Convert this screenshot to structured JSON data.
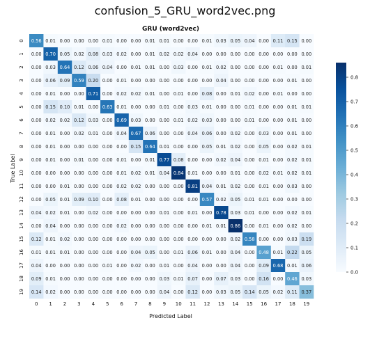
{
  "window_title": "confusion_5_GRU_word2vec.png",
  "chart_data": {
    "type": "heatmap",
    "title": "GRU (word2vec)",
    "xlabel": "Predicted Label",
    "ylabel": "True Label",
    "x_ticks": [
      "0",
      "1",
      "2",
      "3",
      "4",
      "5",
      "6",
      "7",
      "8",
      "9",
      "10",
      "11",
      "12",
      "13",
      "14",
      "15",
      "16",
      "17",
      "18",
      "19"
    ],
    "y_ticks": [
      "0",
      "1",
      "2",
      "3",
      "4",
      "5",
      "6",
      "7",
      "8",
      "9",
      "10",
      "11",
      "12",
      "13",
      "14",
      "15",
      "16",
      "17",
      "18",
      "19"
    ],
    "colorbar_ticks": [
      0.0,
      0.1,
      0.2,
      0.3,
      0.4,
      0.5,
      0.6,
      0.7,
      0.8
    ],
    "colorbar_range": [
      0,
      0.86
    ],
    "color_low": "#f7fbff",
    "color_high": "#08306b",
    "matrix": [
      [
        0.56,
        0.01,
        0.0,
        0.0,
        0.0,
        0.01,
        0.0,
        0.0,
        0.01,
        0.01,
        0.0,
        0.0,
        0.01,
        0.03,
        0.05,
        0.04,
        0.0,
        0.11,
        0.15,
        0.0
      ],
      [
        0.0,
        0.7,
        0.05,
        0.02,
        0.08,
        0.03,
        0.02,
        0.0,
        0.01,
        0.02,
        0.02,
        0.04,
        0.0,
        0.0,
        0.0,
        0.0,
        0.0,
        0.0,
        0.0,
        0.0
      ],
      [
        0.0,
        0.03,
        0.64,
        0.12,
        0.06,
        0.04,
        0.0,
        0.01,
        0.01,
        0.0,
        0.03,
        0.0,
        0.01,
        0.02,
        0.0,
        0.0,
        0.0,
        0.01,
        0.0,
        0.01
      ],
      [
        0.0,
        0.06,
        0.09,
        0.59,
        0.2,
        0.0,
        0.01,
        0.0,
        0.0,
        0.0,
        0.0,
        0.0,
        0.0,
        0.04,
        0.0,
        0.0,
        0.0,
        0.0,
        0.01,
        0.0
      ],
      [
        0.0,
        0.01,
        0.0,
        0.0,
        0.71,
        0.0,
        0.02,
        0.02,
        0.01,
        0.0,
        0.01,
        0.0,
        0.08,
        0.0,
        0.01,
        0.02,
        0.0,
        0.01,
        0.0,
        0.0
      ],
      [
        0.0,
        0.15,
        0.1,
        0.01,
        0.0,
        0.63,
        0.01,
        0.0,
        0.0,
        0.01,
        0.0,
        0.03,
        0.01,
        0.0,
        0.0,
        0.01,
        0.0,
        0.0,
        0.01,
        0.01
      ],
      [
        0.0,
        0.02,
        0.02,
        0.12,
        0.03,
        0.0,
        0.69,
        0.03,
        0.0,
        0.0,
        0.01,
        0.02,
        0.03,
        0.0,
        0.0,
        0.01,
        0.0,
        0.0,
        0.01,
        0.0
      ],
      [
        0.0,
        0.01,
        0.0,
        0.02,
        0.01,
        0.0,
        0.04,
        0.67,
        0.06,
        0.0,
        0.0,
        0.04,
        0.06,
        0.0,
        0.02,
        0.0,
        0.03,
        0.0,
        0.01,
        0.0
      ],
      [
        0.0,
        0.01,
        0.0,
        0.0,
        0.0,
        0.0,
        0.0,
        0.15,
        0.64,
        0.01,
        0.0,
        0.0,
        0.05,
        0.01,
        0.02,
        0.0,
        0.05,
        0.0,
        0.02,
        0.01
      ],
      [
        0.0,
        0.01,
        0.0,
        0.01,
        0.0,
        0.0,
        0.01,
        0.0,
        0.01,
        0.77,
        0.08,
        0.0,
        0.0,
        0.02,
        0.04,
        0.0,
        0.01,
        0.0,
        0.02,
        0.01
      ],
      [
        0.0,
        0.0,
        0.0,
        0.0,
        0.0,
        0.0,
        0.01,
        0.02,
        0.01,
        0.04,
        0.84,
        0.01,
        0.0,
        0.0,
        0.01,
        0.0,
        0.02,
        0.01,
        0.02,
        0.01
      ],
      [
        0.0,
        0.0,
        0.01,
        0.0,
        0.0,
        0.0,
        0.02,
        0.02,
        0.0,
        0.0,
        0.0,
        0.81,
        0.04,
        0.01,
        0.02,
        0.0,
        0.01,
        0.0,
        0.03,
        0.0
      ],
      [
        0.0,
        0.05,
        0.01,
        0.09,
        0.1,
        0.0,
        0.08,
        0.01,
        0.0,
        0.0,
        0.0,
        0.0,
        0.57,
        0.02,
        0.05,
        0.01,
        0.01,
        0.0,
        0.0,
        0.0
      ],
      [
        0.04,
        0.02,
        0.01,
        0.0,
        0.02,
        0.0,
        0.0,
        0.0,
        0.0,
        0.01,
        0.0,
        0.01,
        0.0,
        0.78,
        0.03,
        0.01,
        0.0,
        0.0,
        0.02,
        0.01
      ],
      [
        0.0,
        0.04,
        0.0,
        0.0,
        0.0,
        0.0,
        0.02,
        0.0,
        0.0,
        0.0,
        0.0,
        0.0,
        0.01,
        0.01,
        0.86,
        0.0,
        0.01,
        0.0,
        0.02,
        0.0
      ],
      [
        0.12,
        0.01,
        0.02,
        0.0,
        0.0,
        0.0,
        0.0,
        0.0,
        0.0,
        0.0,
        0.0,
        0.0,
        0.0,
        0.0,
        0.02,
        0.58,
        0.0,
        0.0,
        0.03,
        0.19
      ],
      [
        0.01,
        0.01,
        0.01,
        0.0,
        0.0,
        0.0,
        0.0,
        0.04,
        0.05,
        0.0,
        0.01,
        0.06,
        0.01,
        0.0,
        0.04,
        0.0,
        0.48,
        0.01,
        0.22,
        0.05
      ],
      [
        0.04,
        0.0,
        0.0,
        0.0,
        0.0,
        0.01,
        0.0,
        0.02,
        0.0,
        0.01,
        0.0,
        0.04,
        0.0,
        0.0,
        0.04,
        0.0,
        0.09,
        0.68,
        0.01,
        0.06
      ],
      [
        0.09,
        0.01,
        0.0,
        0.0,
        0.0,
        0.0,
        0.0,
        0.0,
        0.0,
        0.03,
        0.01,
        0.07,
        0.0,
        0.07,
        0.03,
        0.0,
        0.16,
        0.0,
        0.46,
        0.03
      ],
      [
        0.14,
        0.02,
        0.0,
        0.0,
        0.0,
        0.0,
        0.0,
        0.0,
        0.0,
        0.04,
        0.0,
        0.12,
        0.0,
        0.03,
        0.05,
        0.14,
        0.05,
        0.02,
        0.11,
        0.37
      ]
    ]
  }
}
